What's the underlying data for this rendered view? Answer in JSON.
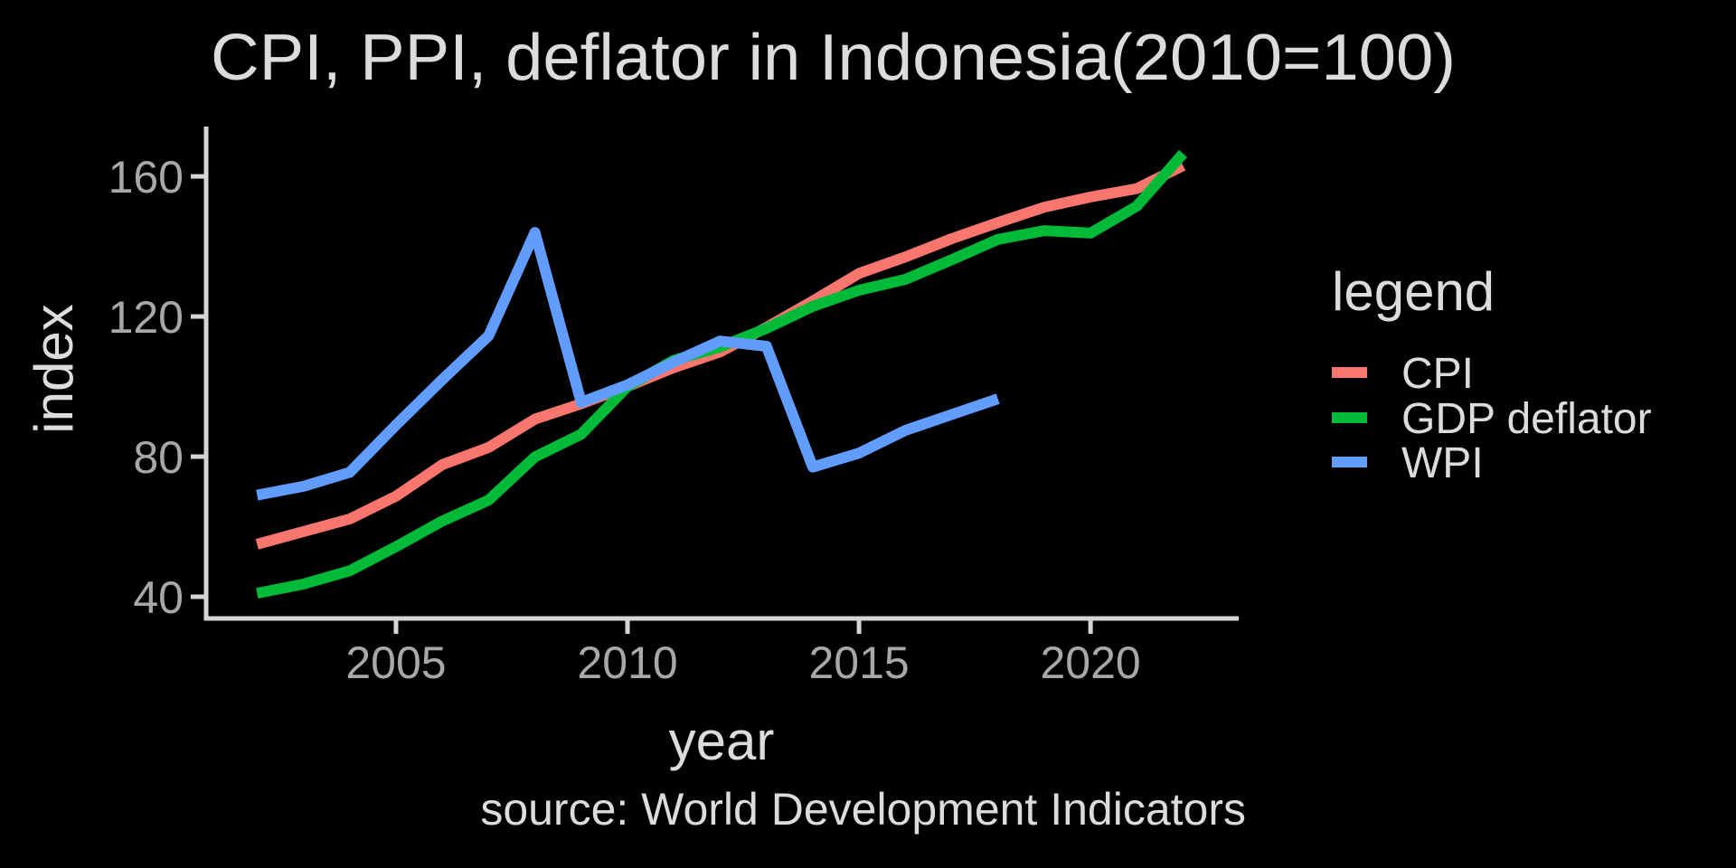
{
  "page": {
    "background": "#000000"
  },
  "colors": {
    "background": "#000000",
    "text": "#DCDCDC",
    "tick_text": "#A8A8A8",
    "axis_line": "#D5D5D5"
  },
  "chart_data": {
    "type": "line",
    "title": "CPI, PPI, deflator in Indonesia(2010=100)",
    "xlabel": "year",
    "ylabel": "index",
    "caption": "source: World Development Indicators",
    "legend": {
      "title": "legend",
      "position": "right"
    },
    "grid": false,
    "x_ticks": [
      2005,
      2010,
      2015,
      2020
    ],
    "y_ticks": [
      40,
      80,
      120,
      160
    ],
    "xlim": [
      2000.9,
      2023.2
    ],
    "ylim": [
      33.8,
      173.7
    ],
    "series": [
      {
        "name": "CPI",
        "color": "#F8766D",
        "x": [
          2002,
          2003,
          2004,
          2005,
          2006,
          2007,
          2008,
          2009,
          2010,
          2011,
          2012,
          2013,
          2014,
          2015,
          2016,
          2017,
          2018,
          2019,
          2020,
          2021,
          2022
        ],
        "values": [
          55.0,
          58.6,
          62.2,
          68.7,
          77.7,
          82.6,
          90.7,
          95.1,
          100.0,
          105.4,
          109.9,
          116.9,
          124.4,
          132.3,
          137.0,
          142.2,
          146.8,
          151.2,
          154.1,
          156.5,
          163.1
        ]
      },
      {
        "name": "GDP deflator",
        "color": "#00BA38",
        "x": [
          2002,
          2003,
          2004,
          2005,
          2006,
          2007,
          2008,
          2009,
          2010,
          2011,
          2012,
          2013,
          2014,
          2015,
          2016,
          2017,
          2018,
          2019,
          2020,
          2021,
          2022
        ],
        "values": [
          41.0,
          43.6,
          47.4,
          54.3,
          61.6,
          67.6,
          79.9,
          86.4,
          100.0,
          107.5,
          111.3,
          116.6,
          122.9,
          127.5,
          130.6,
          136.2,
          142.0,
          144.5,
          143.8,
          151.5,
          166.5
        ]
      },
      {
        "name": "WPI",
        "color": "#619CFF",
        "x": [
          2002,
          2003,
          2004,
          2005,
          2006,
          2007,
          2008,
          2009,
          2010,
          2011,
          2012,
          2013,
          2014,
          2015,
          2016,
          2017,
          2018
        ],
        "values": [
          69.0,
          71.5,
          75.5,
          89.0,
          102.0,
          114.5,
          144.0,
          95.5,
          100.5,
          107.0,
          113.0,
          111.5,
          77.0,
          81.0,
          87.5,
          92.0,
          96.5
        ]
      }
    ]
  }
}
